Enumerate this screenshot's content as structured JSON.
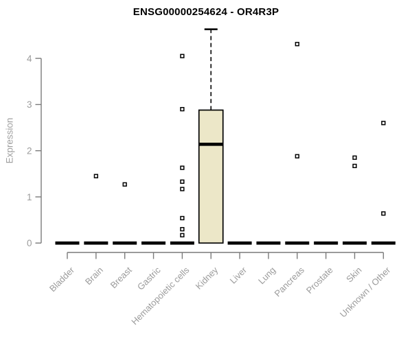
{
  "chart_data": {
    "type": "boxplot",
    "title": "ENSG00000254624 - OR4R3P",
    "xlabel": "",
    "ylabel": "Expression",
    "ylim": [
      0,
      4.65
    ],
    "yticks": [
      0,
      1,
      2,
      3,
      4
    ],
    "grid": false,
    "legend": "none",
    "categories": [
      "Bladder",
      "Brain",
      "Breast",
      "Gastric",
      "Hematopoietic cells",
      "Kidney",
      "Liver",
      "Lung",
      "Pancreas",
      "Prostate",
      "Skin",
      "Unknown / Other"
    ],
    "series": [
      {
        "category": "Bladder",
        "low": 0,
        "q1": 0,
        "median": 0,
        "q3": 0,
        "high": 0,
        "outliers": []
      },
      {
        "category": "Brain",
        "low": 0,
        "q1": 0,
        "median": 0,
        "q3": 0,
        "high": 0,
        "outliers": [
          1.45
        ]
      },
      {
        "category": "Breast",
        "low": 0,
        "q1": 0,
        "median": 0,
        "q3": 0,
        "high": 0,
        "outliers": [
          1.27
        ]
      },
      {
        "category": "Gastric",
        "low": 0,
        "q1": 0,
        "median": 0,
        "q3": 0,
        "high": 0,
        "outliers": []
      },
      {
        "category": "Hematopoietic cells",
        "low": 0,
        "q1": 0,
        "median": 0,
        "q3": 0,
        "high": 0,
        "outliers": [
          4.05,
          2.9,
          1.63,
          1.33,
          1.17,
          0.54,
          0.3,
          0.17
        ]
      },
      {
        "category": "Kidney",
        "low": 0,
        "q1": 0,
        "median": 2.14,
        "q3": 2.88,
        "high": 4.63,
        "outliers": []
      },
      {
        "category": "Liver",
        "low": 0,
        "q1": 0,
        "median": 0,
        "q3": 0,
        "high": 0,
        "outliers": []
      },
      {
        "category": "Lung",
        "low": 0,
        "q1": 0,
        "median": 0,
        "q3": 0,
        "high": 0,
        "outliers": []
      },
      {
        "category": "Pancreas",
        "low": 0,
        "q1": 0,
        "median": 0,
        "q3": 0,
        "high": 0,
        "outliers": [
          4.31,
          1.88
        ]
      },
      {
        "category": "Prostate",
        "low": 0,
        "q1": 0,
        "median": 0,
        "q3": 0,
        "high": 0,
        "outliers": []
      },
      {
        "category": "Skin",
        "low": 0,
        "q1": 0,
        "median": 0,
        "q3": 0,
        "high": 0,
        "outliers": [
          1.85,
          1.67
        ]
      },
      {
        "category": "Unknown / Other",
        "low": 0,
        "q1": 0,
        "median": 0,
        "q3": 0,
        "high": 0,
        "outliers": [
          2.6,
          0.64
        ]
      }
    ],
    "colors": {
      "box_fill": "#ece7c8",
      "box_stroke": "#000000",
      "median_color": "#000000",
      "outlier_stroke": "#000000",
      "axis_line": "#7a7a7a",
      "axis_text": "#9b9b9b",
      "title_color": "#000000"
    }
  }
}
